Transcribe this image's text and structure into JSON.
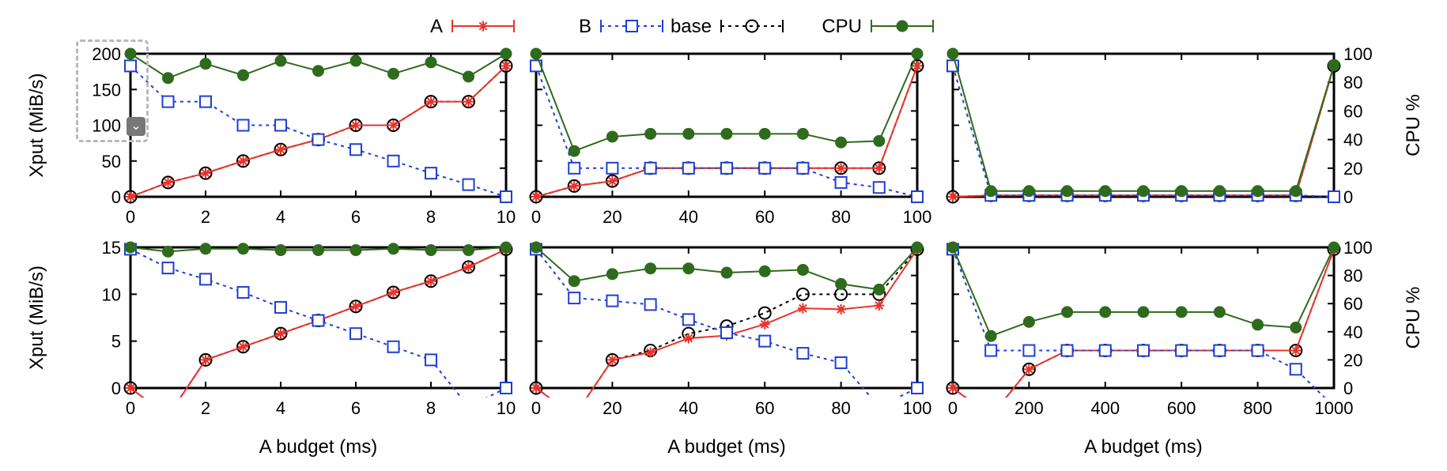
{
  "legend": [
    {
      "key": "A",
      "label": "A",
      "color": "#e8342b",
      "dash": "",
      "marker": "star"
    },
    {
      "key": "B",
      "label": "B",
      "color": "#1f3fd6",
      "dash": "4,5",
      "marker": "square"
    },
    {
      "key": "base",
      "label": "base",
      "color": "#000000",
      "dash": "4,5",
      "marker": "circle"
    },
    {
      "key": "CPU",
      "label": "CPU",
      "color": "#2f6b1d",
      "dash": "",
      "marker": "disc"
    }
  ],
  "overlay": {
    "icon": "chevron-down-icon",
    "glyph": "⌄"
  },
  "chart_data": [
    {
      "type": "line",
      "row": 0,
      "col": 0,
      "ylabel": "Xput (MiB/s)",
      "xlabel": "",
      "xlim": [
        0,
        10
      ],
      "ylim": [
        0,
        200
      ],
      "xticks": [
        "0",
        "2",
        "4",
        "6",
        "8",
        "10"
      ],
      "yticks": [
        "0",
        "50",
        "100",
        "150",
        "200"
      ],
      "y2ticks": [],
      "x": [
        0,
        1,
        2,
        3,
        4,
        5,
        6,
        7,
        8,
        9,
        10
      ],
      "series": [
        {
          "key": "base",
          "values": [
            0,
            20,
            33,
            50,
            66,
            80,
            100,
            100,
            133,
            133,
            183
          ]
        },
        {
          "key": "A",
          "values": [
            0,
            20,
            33,
            50,
            66,
            80,
            100,
            100,
            133,
            133,
            183
          ]
        },
        {
          "key": "B",
          "values": [
            183,
            133,
            133,
            100,
            100,
            80,
            66,
            50,
            33,
            17,
            0
          ]
        },
        {
          "key": "CPU",
          "axis": "cpu",
          "values": [
            100,
            83,
            93,
            85,
            95,
            88,
            95,
            86,
            94,
            84,
            100
          ]
        }
      ]
    },
    {
      "type": "line",
      "row": 0,
      "col": 1,
      "ylabel": "",
      "xlabel": "",
      "xlim": [
        0,
        100
      ],
      "ylim": [
        0,
        200
      ],
      "xticks": [
        "0",
        "20",
        "40",
        "60",
        "80",
        "100"
      ],
      "yticks": [],
      "y2ticks": [],
      "x": [
        0,
        10,
        20,
        30,
        40,
        50,
        60,
        70,
        80,
        90,
        100
      ],
      "series": [
        {
          "key": "base",
          "values": [
            0,
            15,
            22,
            40,
            40,
            40,
            40,
            40,
            40,
            40,
            183
          ]
        },
        {
          "key": "A",
          "values": [
            0,
            15,
            22,
            40,
            40,
            40,
            40,
            40,
            40,
            40,
            183
          ]
        },
        {
          "key": "B",
          "values": [
            183,
            40,
            40,
            40,
            40,
            40,
            40,
            40,
            20,
            13,
            0
          ]
        },
        {
          "key": "CPU",
          "axis": "cpu",
          "values": [
            100,
            32,
            42,
            44,
            44,
            44,
            44,
            44,
            38,
            39,
            100
          ]
        }
      ]
    },
    {
      "type": "line",
      "row": 0,
      "col": 2,
      "ylabel": "",
      "xlabel": "",
      "xlim": [
        0,
        1000
      ],
      "ylim": [
        0,
        200
      ],
      "xticks": [],
      "yticks": [],
      "y2ticks": [
        "0",
        "20",
        "40",
        "60",
        "80",
        "100"
      ],
      "y2label": "CPU %",
      "x": [
        0,
        100,
        200,
        300,
        400,
        500,
        600,
        700,
        800,
        900,
        1000
      ],
      "series": [
        {
          "key": "base",
          "values": [
            0,
            2,
            2,
            2,
            2,
            2,
            2,
            2,
            2,
            2,
            183
          ]
        },
        {
          "key": "A",
          "values": [
            0,
            2,
            2,
            2,
            2,
            2,
            2,
            2,
            2,
            2,
            183
          ]
        },
        {
          "key": "B",
          "values": [
            183,
            2,
            2,
            2,
            2,
            2,
            2,
            2,
            2,
            2,
            0
          ]
        },
        {
          "key": "CPU",
          "axis": "cpu",
          "values": [
            100,
            4,
            4,
            4,
            4,
            4,
            4,
            4,
            4,
            4,
            92
          ]
        }
      ]
    },
    {
      "type": "line",
      "row": 1,
      "col": 0,
      "ylabel": "Xput (MiB/s)",
      "xlabel": "A budget (ms)",
      "xlim": [
        0,
        10
      ],
      "ylim": [
        0,
        15
      ],
      "xticks": [
        "0",
        "2",
        "4",
        "6",
        "8",
        "10"
      ],
      "yticks": [
        "0",
        "5",
        "10",
        "15"
      ],
      "y2ticks": [],
      "x": [
        0,
        1,
        2,
        3,
        4,
        5,
        6,
        7,
        8,
        9,
        10
      ],
      "series": [
        {
          "key": "base",
          "values": [
            0,
            -3,
            3,
            4.4,
            5.8,
            7.2,
            8.7,
            10.2,
            11.4,
            12.9,
            14.8
          ]
        },
        {
          "key": "A",
          "values": [
            0,
            -3,
            3,
            4.4,
            5.8,
            7.2,
            8.7,
            10.2,
            11.4,
            12.9,
            14.8
          ]
        },
        {
          "key": "B",
          "values": [
            14.8,
            12.8,
            11.6,
            10.2,
            8.6,
            7.2,
            5.8,
            4.4,
            3,
            -2,
            0
          ]
        },
        {
          "key": "CPU",
          "axis": "cpu",
          "values": [
            100,
            97,
            99,
            99,
            98,
            98,
            98,
            99,
            98,
            98,
            100
          ]
        }
      ]
    },
    {
      "type": "line",
      "row": 1,
      "col": 1,
      "ylabel": "",
      "xlabel": "A budget (ms)",
      "xlim": [
        0,
        100
      ],
      "ylim": [
        0,
        15
      ],
      "xticks": [
        "0",
        "20",
        "40",
        "60",
        "80",
        "100"
      ],
      "yticks": [],
      "y2ticks": [],
      "x": [
        0,
        10,
        20,
        30,
        40,
        50,
        60,
        70,
        80,
        90,
        100
      ],
      "series": [
        {
          "key": "base",
          "values": [
            0,
            -3,
            3,
            4,
            5.8,
            6.6,
            8,
            10,
            10,
            10,
            14.8
          ]
        },
        {
          "key": "A",
          "values": [
            0,
            -3,
            3,
            3.8,
            5.3,
            5.6,
            6.8,
            8.5,
            8.4,
            8.8,
            14.8
          ]
        },
        {
          "key": "B",
          "values": [
            14.8,
            9.6,
            9.3,
            8.9,
            7.3,
            5.9,
            5,
            3.7,
            2.7,
            -2,
            0
          ]
        },
        {
          "key": "CPU",
          "axis": "cpu",
          "values": [
            100,
            76,
            81,
            85,
            85,
            82,
            83,
            84,
            74,
            70,
            100
          ]
        }
      ]
    },
    {
      "type": "line",
      "row": 1,
      "col": 2,
      "ylabel": "",
      "xlabel": "A budget (ms)",
      "xlim": [
        0,
        1000
      ],
      "ylim": [
        0,
        15
      ],
      "xticks": [
        "0",
        "200",
        "400",
        "600",
        "800",
        "1000"
      ],
      "yticks": [],
      "y2ticks": [
        "0",
        "20",
        "40",
        "60",
        "80",
        "100"
      ],
      "y2label": "CPU %",
      "x": [
        0,
        100,
        200,
        300,
        400,
        500,
        600,
        700,
        800,
        900,
        1000
      ],
      "series": [
        {
          "key": "base",
          "values": [
            0,
            -3,
            2,
            4,
            4,
            4,
            4,
            4,
            4,
            4,
            14.8
          ]
        },
        {
          "key": "A",
          "values": [
            0,
            -3,
            2,
            4,
            4,
            4,
            4,
            4,
            4,
            4,
            14.8
          ]
        },
        {
          "key": "B",
          "values": [
            14.8,
            4,
            4,
            4,
            4,
            4,
            4,
            4,
            4,
            2,
            -2
          ]
        },
        {
          "key": "CPU",
          "axis": "cpu",
          "values": [
            100,
            37,
            47,
            54,
            54,
            54,
            54,
            54,
            45,
            43,
            100
          ]
        }
      ]
    }
  ]
}
